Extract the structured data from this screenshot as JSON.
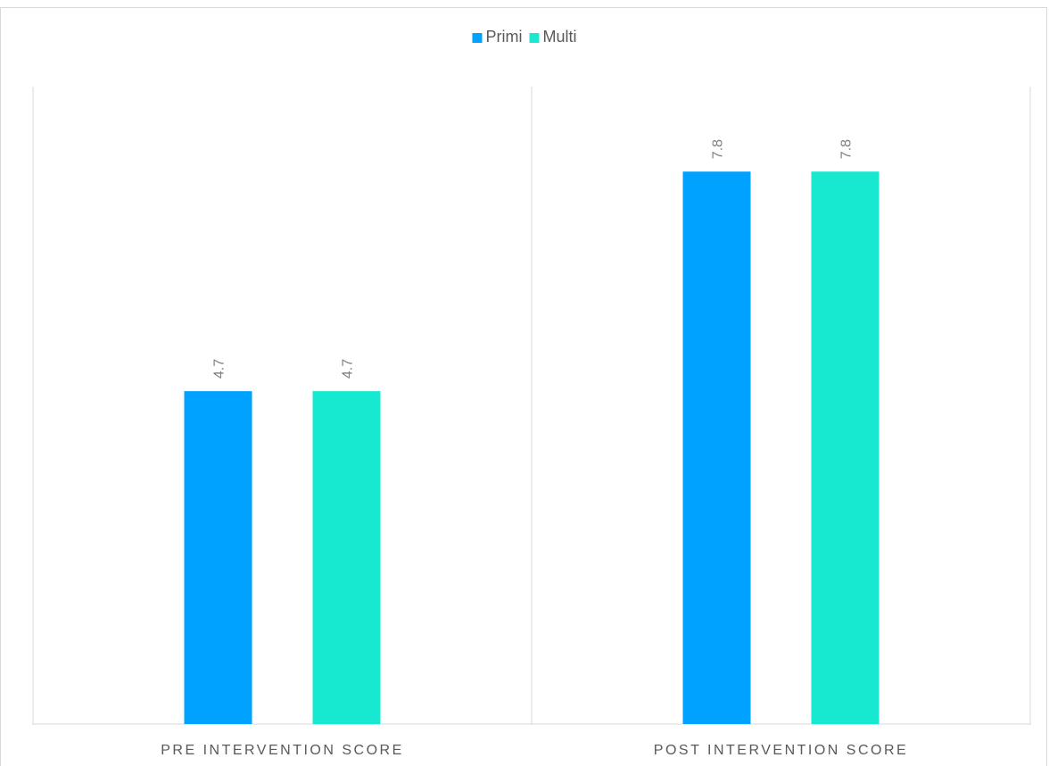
{
  "chart_data": {
    "type": "bar",
    "categories": [
      "PRE INTERVENTION SCORE",
      "POST INTERVENTION SCORE"
    ],
    "series": [
      {
        "name": "Primi",
        "values": [
          4.7,
          7.8
        ],
        "color": "#00a2ff"
      },
      {
        "name": "Multi",
        "values": [
          4.7,
          7.8
        ],
        "color": "#17e8d0"
      }
    ],
    "data_labels": [
      [
        "4.7",
        "7.8"
      ],
      [
        "4.7",
        "7.8"
      ]
    ],
    "ylim": [
      0,
      9
    ],
    "title": "",
    "xlabel": "",
    "ylabel": "",
    "grid": false,
    "legend": "top-center",
    "data_label_orientation": "vertical",
    "colors": {
      "axis": "#d9d9d9",
      "border": "#d9d9d9",
      "text": "#595959",
      "data_label": "#7f7f7f"
    }
  }
}
